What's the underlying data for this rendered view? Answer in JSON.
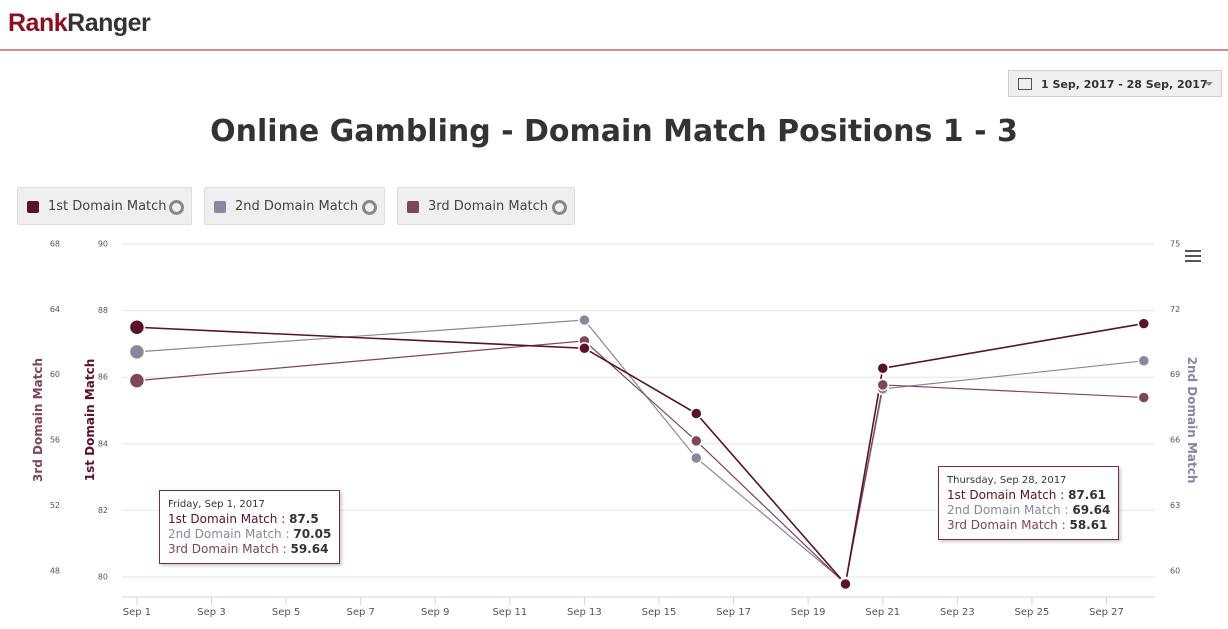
{
  "header": {
    "logo": [
      "Rank",
      "Ranger"
    ],
    "date_range": "1 Sep, 2017 - 28 Sep, 2017"
  },
  "chart_data": {
    "type": "line",
    "title": "Online Gambling - Domain Match Positions 1 - 3",
    "x": [
      1,
      13,
      16,
      20,
      21,
      28
    ],
    "xlim": [
      0.6,
      28.3
    ],
    "xticks": [
      {
        "value": 1,
        "label": "Sep 1"
      },
      {
        "value": 3,
        "label": "Sep 3"
      },
      {
        "value": 5,
        "label": "Sep 5"
      },
      {
        "value": 7,
        "label": "Sep 7"
      },
      {
        "value": 9,
        "label": "Sep 9"
      },
      {
        "value": 11,
        "label": "Sep 11"
      },
      {
        "value": 13,
        "label": "Sep 13"
      },
      {
        "value": 15,
        "label": "Sep 15"
      },
      {
        "value": 17,
        "label": "Sep 17"
      },
      {
        "value": 19,
        "label": "Sep 19"
      },
      {
        "value": 21,
        "label": "Sep 21"
      },
      {
        "value": 23,
        "label": "Sep 23"
      },
      {
        "value": 25,
        "label": "Sep 25"
      },
      {
        "value": 27,
        "label": "Sep 27"
      }
    ],
    "ylabel": "1st Domain Match",
    "ylim": [
      79.4,
      90
    ],
    "yticks": [
      80,
      82,
      84,
      86,
      88,
      90
    ],
    "y2label": "2nd Domain Match",
    "y2lim": [
      58.8,
      75
    ],
    "y2ticks": [
      60,
      63,
      66,
      69,
      72,
      75
    ],
    "y3label": "3rd Domain Match",
    "y3lim": [
      46.4,
      68
    ],
    "y3ticks": [
      48,
      52,
      56,
      60,
      64,
      68
    ],
    "grid": true,
    "series": [
      {
        "name": "1st Domain Match",
        "color": "#5a1228",
        "axis": "y",
        "values": [
          87.5,
          86.87,
          84.91,
          79.79,
          86.27,
          87.61
        ]
      },
      {
        "name": "2nd Domain Match",
        "color": "#8a86a0",
        "axis": "y2",
        "values": [
          70.05,
          71.51,
          65.18,
          59.45,
          68.35,
          69.64
        ]
      },
      {
        "name": "3rd Domain Match",
        "color": "#7e4656",
        "axis": "y3",
        "values": [
          59.64,
          62.07,
          55.95,
          47.2,
          59.38,
          58.61
        ]
      }
    ],
    "tooltips": [
      "Friday, Sep 1, 2017",
      "Thursday, Sep 28, 2017"
    ]
  }
}
